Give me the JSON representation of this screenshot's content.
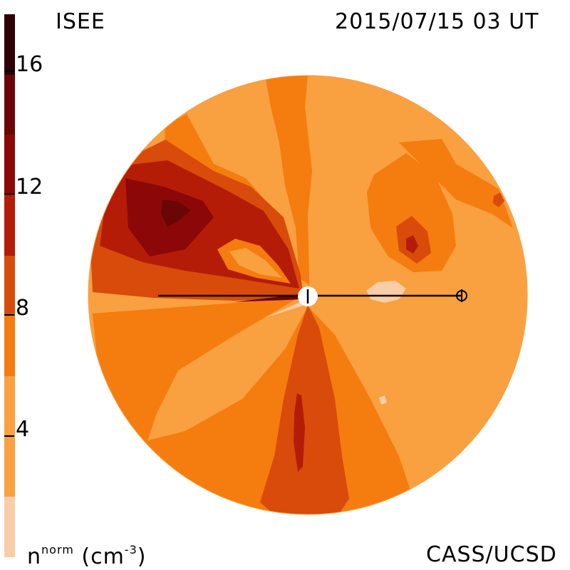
{
  "header": {
    "source": "ISEE",
    "timestamp": "2015/07/15 03 UT"
  },
  "footer": {
    "credit": "CASS/UCSD",
    "unit_base": "n",
    "unit_superscript": "norm",
    "unit_rest": " (cm",
    "unit_exponent": "-3",
    "unit_close": ")"
  },
  "colorbar": {
    "ticks": [
      "16",
      "12",
      "8",
      "4"
    ],
    "tick_values": [
      16,
      12,
      8,
      4
    ],
    "range": [
      0,
      18
    ],
    "levels": [
      {
        "from": 0,
        "to": 2,
        "color": "#f9cda6"
      },
      {
        "from": 2,
        "to": 6,
        "color": "#f9a040"
      },
      {
        "from": 6,
        "to": 8,
        "color": "#f57c0e"
      },
      {
        "from": 8,
        "to": 10,
        "color": "#d94b0a"
      },
      {
        "from": 10,
        "to": 12,
        "color": "#b51c08"
      },
      {
        "from": 12,
        "to": 14,
        "color": "#8c0808"
      },
      {
        "from": 14,
        "to": 16,
        "color": "#6a0606"
      },
      {
        "from": 16,
        "to": 18,
        "color": "#2e0202"
      }
    ]
  },
  "map": {
    "type": "ecliptic-plane density contour",
    "markers": [
      "sun-marker",
      "earth-marker"
    ]
  }
}
